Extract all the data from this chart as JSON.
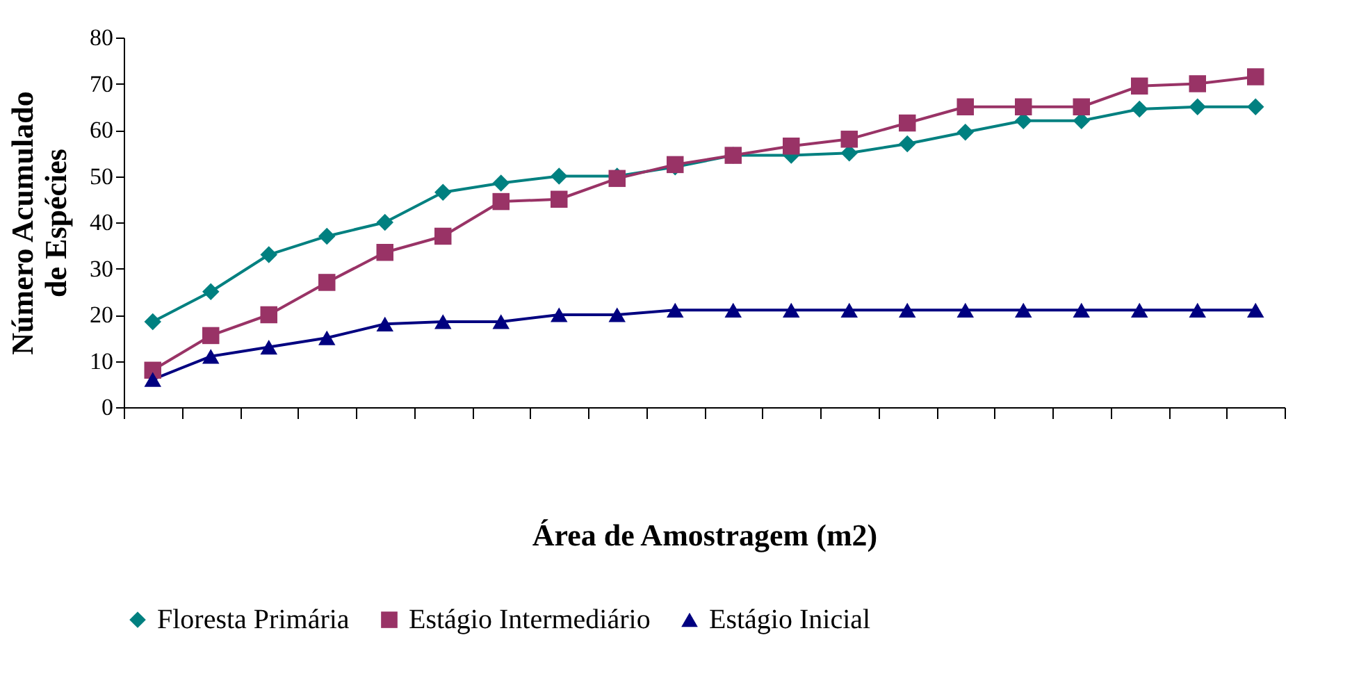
{
  "chart_data": {
    "type": "line",
    "xlabel": "Área de Amostragem (m2)",
    "ylabel": "Número Acumulado de Espécies",
    "categories": [
      null,
      null,
      null,
      null,
      null,
      null,
      null,
      null,
      null,
      null,
      null,
      null,
      null,
      null,
      null,
      null,
      null,
      null,
      null,
      null
    ],
    "ylim": [
      0,
      80
    ],
    "yticks": [
      0,
      10,
      20,
      30,
      40,
      50,
      60,
      70,
      80
    ],
    "grid": false,
    "legend": "bottom",
    "line_style": "solid",
    "series": [
      {
        "name": "Floresta Primária",
        "color": "#008080",
        "marker": "diamond",
        "values": [
          18.5,
          25,
          33,
          37,
          40,
          46.5,
          48.5,
          50,
          50,
          52,
          54.5,
          54.5,
          55,
          57,
          59.5,
          62,
          62,
          64.5,
          65,
          65
        ]
      },
      {
        "name": "Estágio Intermediário",
        "color": "#993366",
        "marker": "square",
        "values": [
          8,
          15.5,
          20,
          27,
          33.5,
          37,
          44.5,
          45,
          49.5,
          52.5,
          54.5,
          56.5,
          58,
          61.5,
          65,
          65,
          65,
          69.5,
          70,
          71.5
        ]
      },
      {
        "name": "Estágio Inicial",
        "color": "#000080",
        "marker": "triangle",
        "values": [
          6,
          11,
          13,
          15,
          18,
          18.5,
          18.5,
          20,
          20,
          21,
          21,
          21,
          21,
          21,
          21,
          21,
          21,
          21,
          21,
          21
        ]
      }
    ]
  }
}
